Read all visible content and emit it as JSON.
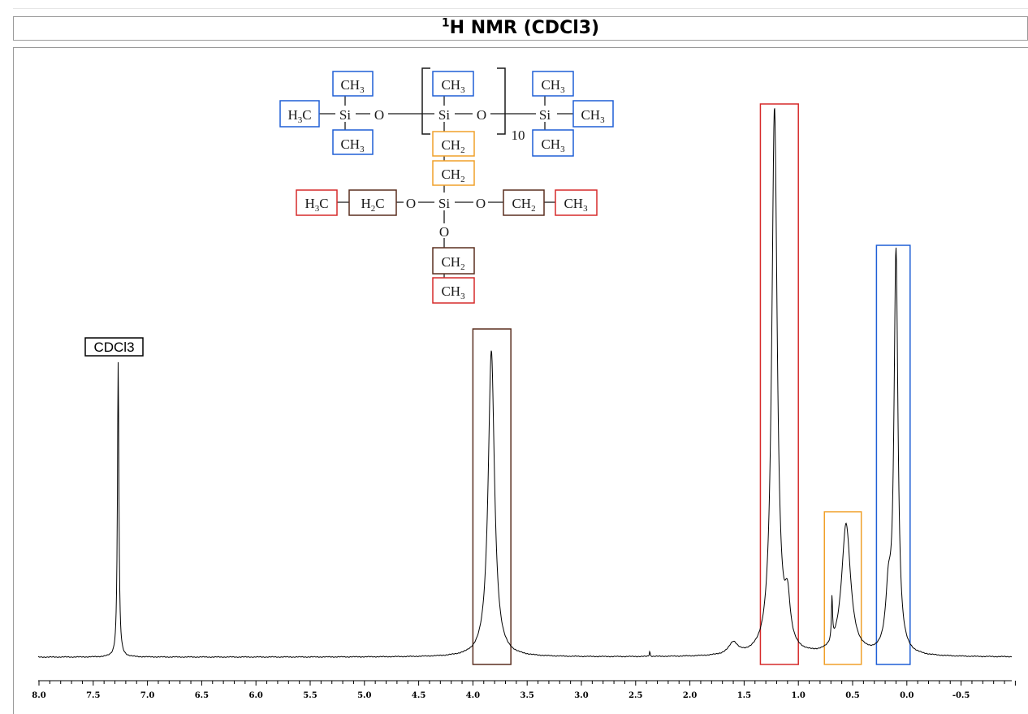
{
  "title": {
    "sup": "1",
    "main": "H NMR (CDCl3)"
  },
  "colors": {
    "ethoxy_ch2": "#5a2e1f",
    "ethoxy_ch3": "#d62a2a",
    "si_ch2": "#f0a02a",
    "si_ch3": "#1f5fd6",
    "solvent": "#000000",
    "trace": "#000000"
  },
  "structure": {
    "ch3": "CH",
    "ch2": "CH",
    "h3c": "H",
    "h2c": "H",
    "c": "C",
    "sub3": "3",
    "sub2": "2",
    "si": "Si",
    "o": "O",
    "repeat_n": "10"
  },
  "chart_data": {
    "type": "line",
    "title": "1H NMR (CDCl3)",
    "xlabel": "",
    "ylabel": "",
    "x_reversed": true,
    "xlim": [
      8.0,
      -1.0
    ],
    "ylim": [
      0,
      1.0
    ],
    "x_ticks": [
      "8.0",
      "7.5",
      "7.0",
      "6.5",
      "6.0",
      "5.5",
      "5.0",
      "4.5",
      "4.0",
      "3.5",
      "3.0",
      "2.5",
      "2.0",
      "1.5",
      "1.0",
      "0.5",
      "0.0",
      "-0.5"
    ],
    "grid": false,
    "peaks": [
      {
        "ppm": 7.27,
        "height": 0.54,
        "width": 0.008,
        "label": "CDCl3"
      },
      {
        "ppm": 3.83,
        "height": 0.56,
        "width": 0.035,
        "assignment": "Si-O-CH2"
      },
      {
        "ppm": 1.22,
        "height": 1.0,
        "width": 0.03,
        "assignment": "CH3 (ethoxy)"
      },
      {
        "ppm": 1.1,
        "height": 0.08,
        "width": 0.03
      },
      {
        "ppm": 0.56,
        "height": 0.24,
        "width": 0.05,
        "assignment": "Si-CH2"
      },
      {
        "ppm": 0.69,
        "height": 0.08,
        "width": 0.006
      },
      {
        "ppm": 0.17,
        "height": 0.1,
        "width": 0.03
      },
      {
        "ppm": 0.1,
        "height": 0.73,
        "width": 0.022,
        "assignment": "Si-CH3"
      },
      {
        "ppm": 1.6,
        "height": 0.022,
        "width": 0.05
      },
      {
        "ppm": 2.37,
        "height": 0.01,
        "width": 0.004
      }
    ],
    "annotations": [
      {
        "label": "CDCl3",
        "ppm": 7.27,
        "color": "#000000"
      },
      {
        "box": "ethoxy-ch2",
        "ppm_range": [
          4.0,
          3.65
        ],
        "color": "#5a2e1f"
      },
      {
        "box": "ethoxy-ch3",
        "ppm_range": [
          1.35,
          1.0
        ],
        "color": "#d62a2a"
      },
      {
        "box": "si-ch2",
        "ppm_range": [
          0.76,
          0.42
        ],
        "color": "#f0a02a"
      },
      {
        "box": "si-ch3",
        "ppm_range": [
          0.28,
          -0.03
        ],
        "color": "#1f5fd6"
      }
    ]
  }
}
